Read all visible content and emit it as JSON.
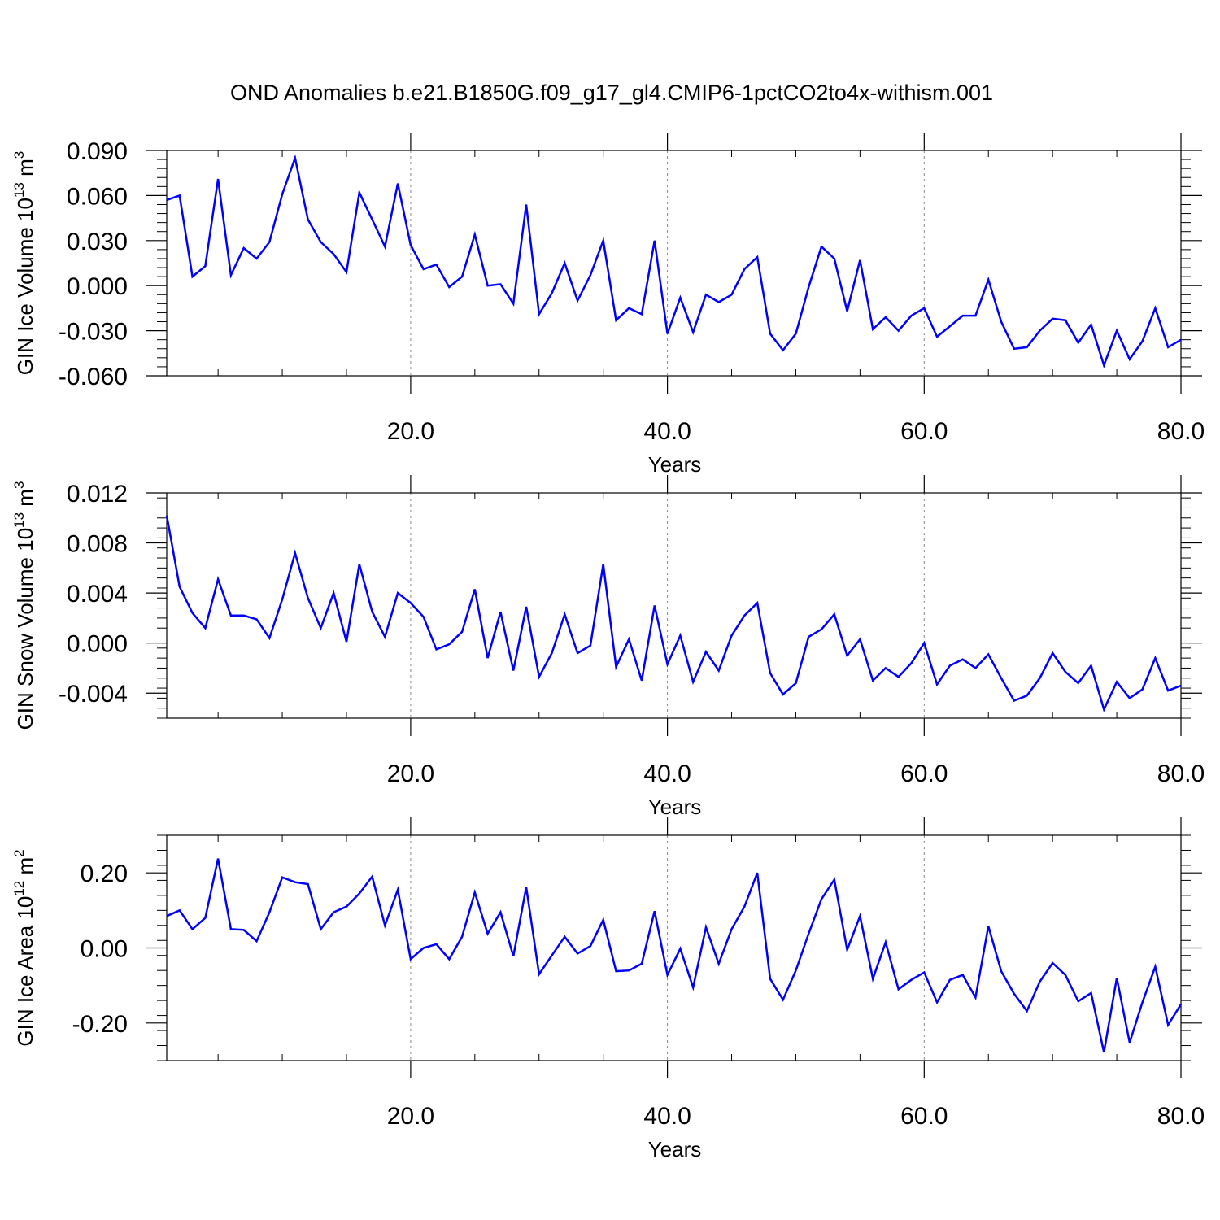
{
  "figure": {
    "title": "OND Anomalies b.e21.B1850G.f09_g17_gl4.CMIP6-1pctCO2to4x-withism.001",
    "line_color": "#0000ff",
    "axis_color": "#000000",
    "grid_color": "#888888"
  },
  "chart_data": [
    {
      "type": "line",
      "title": "",
      "xlabel": "Years",
      "ylabel": "GIN Ice Volume 10",
      "ylabel_exp": "13",
      "ylabel_unit": " m",
      "ylabel_unit_exp": "3",
      "xlim": [
        1,
        80
      ],
      "ylim": [
        -0.06,
        0.09
      ],
      "xticks": [
        20,
        40,
        60,
        80
      ],
      "xtick_labels": [
        "20.0",
        "40.0",
        "60.0",
        "80.0"
      ],
      "yticks": [
        0.09,
        0.06,
        0.03,
        0.0,
        -0.03,
        -0.06
      ],
      "ytick_labels": [
        "0.090",
        "0.060",
        "0.030",
        "0.000",
        "-0.030",
        "-0.060"
      ],
      "grid": "x-dashed",
      "series": [
        {
          "x": [
            1,
            2,
            3,
            4,
            5,
            6,
            7,
            8,
            9,
            10,
            11,
            12,
            13,
            14,
            15,
            16,
            17,
            18,
            19,
            20,
            21,
            22,
            23,
            24,
            25,
            26,
            27,
            28,
            29,
            30,
            31,
            32,
            33,
            34,
            35,
            36,
            37,
            38,
            39,
            40,
            41,
            42,
            43,
            44,
            45,
            46,
            47,
            48,
            49,
            50,
            51,
            52,
            53,
            54,
            55,
            56,
            57,
            58,
            59,
            60,
            61,
            62,
            63,
            64,
            65,
            66,
            67,
            68,
            69,
            70,
            71,
            72,
            73,
            74,
            75,
            76,
            77,
            78,
            79,
            80
          ],
          "values": [
            0.057,
            0.06,
            0.006,
            0.013,
            0.071,
            0.007,
            0.025,
            0.018,
            0.029,
            0.061,
            0.085,
            0.044,
            0.029,
            0.021,
            0.009,
            0.062,
            0.044,
            0.026,
            0.068,
            0.027,
            0.011,
            0.014,
            -0.001,
            0.006,
            0.034,
            0.0,
            0.001,
            -0.012,
            0.054,
            -0.019,
            -0.005,
            0.015,
            -0.01,
            0.007,
            0.03,
            -0.023,
            -0.015,
            -0.019,
            0.03,
            -0.032,
            -0.008,
            -0.031,
            -0.006,
            -0.011,
            -0.006,
            0.011,
            0.019,
            -0.032,
            -0.043,
            -0.032,
            -0.001,
            0.026,
            0.018,
            -0.017,
            0.017,
            -0.029,
            -0.021,
            -0.03,
            -0.02,
            -0.015,
            -0.034,
            -0.027,
            -0.02,
            -0.02,
            0.004,
            -0.024,
            -0.042,
            -0.041,
            -0.03,
            -0.022,
            -0.023,
            -0.038,
            -0.026,
            -0.053,
            -0.03,
            -0.049,
            -0.037,
            -0.015,
            -0.041,
            -0.036
          ]
        }
      ]
    },
    {
      "type": "line",
      "title": "",
      "xlabel": "Years",
      "ylabel": "GIN Snow Volume 10",
      "ylabel_exp": "13",
      "ylabel_unit": " m",
      "ylabel_unit_exp": "3",
      "xlim": [
        1,
        80
      ],
      "ylim": [
        -0.006,
        0.012
      ],
      "xticks": [
        20,
        40,
        60,
        80
      ],
      "xtick_labels": [
        "20.0",
        "40.0",
        "60.0",
        "80.0"
      ],
      "yticks": [
        0.012,
        0.008,
        0.004,
        0.0,
        -0.004
      ],
      "ytick_labels": [
        "0.012",
        "0.008",
        "0.004",
        "0.000",
        "-0.004"
      ],
      "grid": "x-dashed",
      "series": [
        {
          "x": [
            1,
            2,
            3,
            4,
            5,
            6,
            7,
            8,
            9,
            10,
            11,
            12,
            13,
            14,
            15,
            16,
            17,
            18,
            19,
            20,
            21,
            22,
            23,
            24,
            25,
            26,
            27,
            28,
            29,
            30,
            31,
            32,
            33,
            34,
            35,
            36,
            37,
            38,
            39,
            40,
            41,
            42,
            43,
            44,
            45,
            46,
            47,
            48,
            49,
            50,
            51,
            52,
            53,
            54,
            55,
            56,
            57,
            58,
            59,
            60,
            61,
            62,
            63,
            64,
            65,
            66,
            67,
            68,
            69,
            70,
            71,
            72,
            73,
            74,
            75,
            76,
            77,
            78,
            79,
            80
          ],
          "values": [
            0.0102,
            0.0045,
            0.0024,
            0.0012,
            0.0051,
            0.0022,
            0.0022,
            0.0019,
            0.0004,
            0.0035,
            0.0072,
            0.0036,
            0.0012,
            0.004,
            0.0001,
            0.0063,
            0.0025,
            0.0005,
            0.004,
            0.0032,
            0.0021,
            -0.0005,
            -0.0001,
            0.0009,
            0.0043,
            -0.0012,
            0.0025,
            -0.0022,
            0.0029,
            -0.0027,
            -0.0008,
            0.0023,
            -0.0008,
            -0.0002,
            0.0063,
            -0.0019,
            0.0003,
            -0.003,
            0.003,
            -0.0017,
            0.0006,
            -0.0031,
            -0.0007,
            -0.0022,
            0.0006,
            0.0022,
            0.0032,
            -0.0024,
            -0.0041,
            -0.0032,
            0.0005,
            0.0011,
            0.0023,
            -0.001,
            0.0003,
            -0.003,
            -0.002,
            -0.0027,
            -0.0016,
            0.0,
            -0.0033,
            -0.0018,
            -0.0013,
            -0.002,
            -0.0009,
            -0.0028,
            -0.0046,
            -0.0042,
            -0.0028,
            -0.0008,
            -0.0023,
            -0.0032,
            -0.0018,
            -0.0053,
            -0.0031,
            -0.0044,
            -0.0037,
            -0.0012,
            -0.0038,
            -0.0034
          ]
        }
      ]
    },
    {
      "type": "line",
      "title": "",
      "xlabel": "Years",
      "ylabel": "GIN Ice Area 10",
      "ylabel_exp": "12",
      "ylabel_unit": " m",
      "ylabel_unit_exp": "2",
      "xlim": [
        1,
        80
      ],
      "ylim": [
        -0.3,
        0.3
      ],
      "xticks": [
        20,
        40,
        60,
        80
      ],
      "xtick_labels": [
        "20.0",
        "40.0",
        "60.0",
        "80.0"
      ],
      "yticks": [
        0.2,
        0.0,
        -0.2
      ],
      "ytick_labels": [
        "0.20",
        "0.00",
        "-0.20"
      ],
      "grid": "x-dashed",
      "series": [
        {
          "x": [
            1,
            2,
            3,
            4,
            5,
            6,
            7,
            8,
            9,
            10,
            11,
            12,
            13,
            14,
            15,
            16,
            17,
            18,
            19,
            20,
            21,
            22,
            23,
            24,
            25,
            26,
            27,
            28,
            29,
            30,
            31,
            32,
            33,
            34,
            35,
            36,
            37,
            38,
            39,
            40,
            41,
            42,
            43,
            44,
            45,
            46,
            47,
            48,
            49,
            50,
            51,
            52,
            53,
            54,
            55,
            56,
            57,
            58,
            59,
            60,
            61,
            62,
            63,
            64,
            65,
            66,
            67,
            68,
            69,
            70,
            71,
            72,
            73,
            74,
            75,
            76,
            77,
            78,
            79,
            80
          ],
          "values": [
            0.085,
            0.1,
            0.05,
            0.08,
            0.238,
            0.05,
            0.048,
            0.018,
            0.095,
            0.188,
            0.175,
            0.17,
            0.05,
            0.095,
            0.11,
            0.145,
            0.19,
            0.06,
            0.155,
            -0.03,
            0.0,
            0.01,
            -0.03,
            0.03,
            0.148,
            0.038,
            0.095,
            -0.022,
            0.162,
            -0.07,
            -0.02,
            0.03,
            -0.015,
            0.005,
            0.075,
            -0.062,
            -0.06,
            -0.042,
            0.098,
            -0.072,
            -0.002,
            -0.105,
            0.055,
            -0.042,
            0.05,
            0.11,
            0.2,
            -0.082,
            -0.138,
            -0.06,
            0.038,
            0.13,
            0.182,
            -0.005,
            0.085,
            -0.082,
            0.015,
            -0.11,
            -0.085,
            -0.065,
            -0.145,
            -0.085,
            -0.072,
            -0.132,
            0.058,
            -0.062,
            -0.122,
            -0.168,
            -0.09,
            -0.04,
            -0.072,
            -0.142,
            -0.12,
            -0.278,
            -0.08,
            -0.252,
            -0.145,
            -0.05,
            -0.205,
            -0.15
          ]
        }
      ]
    }
  ]
}
